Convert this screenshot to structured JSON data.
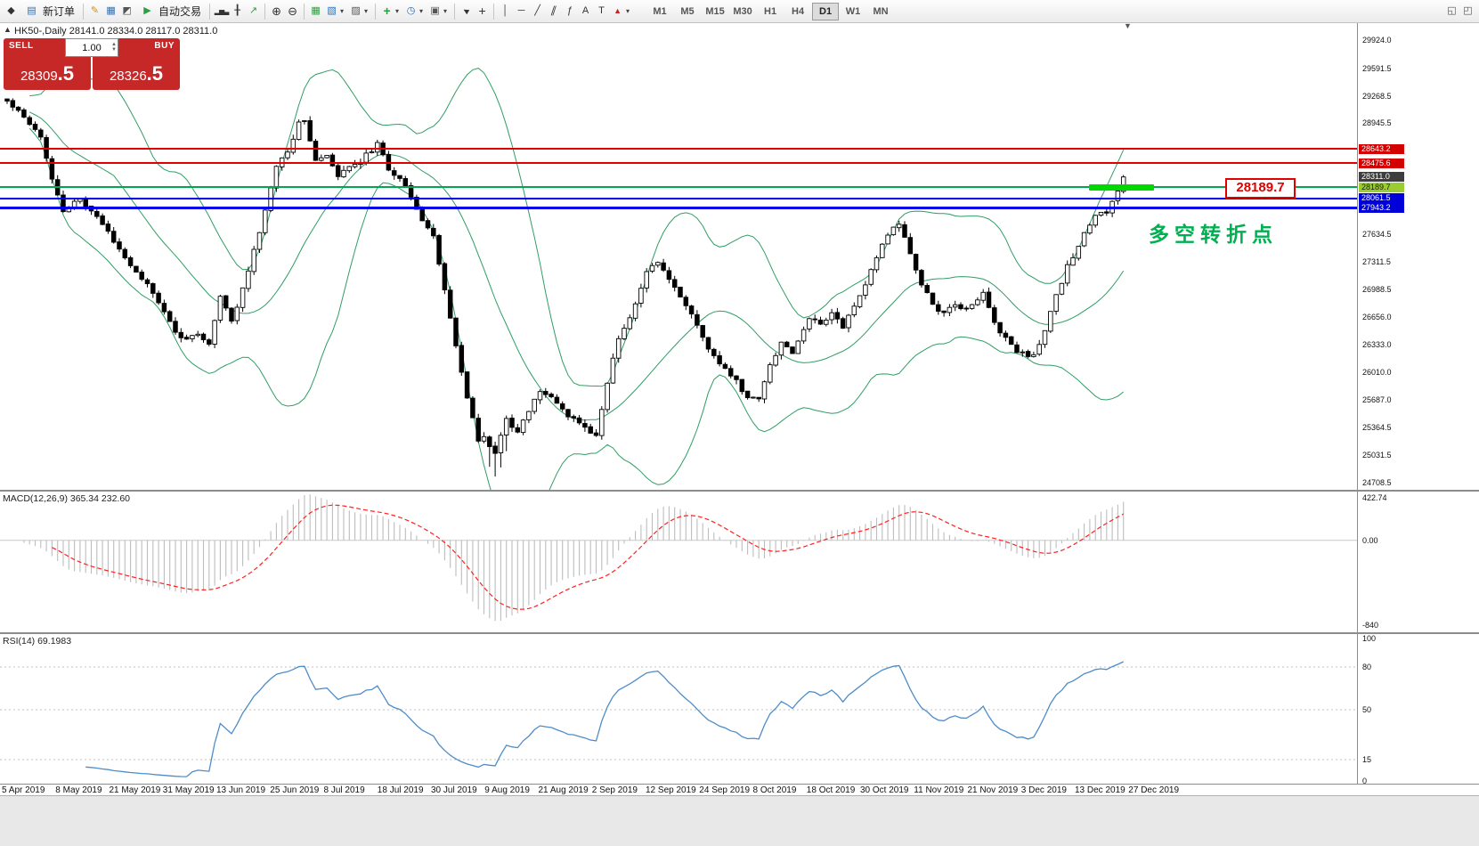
{
  "toolbar": {
    "new_order": "新订单",
    "auto_trading": "自动交易",
    "timeframes": [
      "M1",
      "M5",
      "M15",
      "M30",
      "H1",
      "H4",
      "D1",
      "W1",
      "MN"
    ],
    "active_timeframe": "D1"
  },
  "icons": {
    "app": "◆",
    "new_order": "▤",
    "terminal": "▦",
    "editor": "✎",
    "tester": "◩",
    "autotrade_play": "▶",
    "bars": "▂▅▃",
    "candles": "╂",
    "linechart": "↗",
    "zoom_in": "⊕",
    "zoom_out": "⊖",
    "tile": "▦",
    "new_chart": "▧",
    "profiles": "▨",
    "indicators": "+",
    "periods": "◷",
    "templates": "▣",
    "cursor": "▲",
    "crosshair": "+",
    "vline": "│",
    "hline": "─",
    "trend": "╱",
    "channel": "∥",
    "fibo": "ƒ",
    "text_tool": "A",
    "label_tool": "T",
    "shapes": "▲",
    "caret": "▾",
    "win1": "◱",
    "win2": "◰",
    "shift_marker": "▼",
    "collapse": "▲",
    "spin_up": "▲",
    "spin_down": "▼"
  },
  "main": {
    "ohlc_title": "HK50-,Daily  28141.0 28334.0 28117.0 28311.0"
  },
  "one_click": {
    "sell_label": "SELL",
    "buy_label": "BUY",
    "sell_price_main": "28309",
    "sell_price_big": ".5",
    "buy_price_main": "28326",
    "buy_price_big": ".5",
    "volume": "1.00",
    "button_color": "#c62828"
  },
  "price_axis": {
    "labels": [
      "29924.0",
      "29591.5",
      "29268.5",
      "28945.5",
      "27634.5",
      "27311.5",
      "26988.5",
      "26656.0",
      "26333.0",
      "26010.0",
      "25687.0",
      "25364.5",
      "25031.5",
      "24708.5"
    ],
    "tags": [
      {
        "text": "28643.2",
        "price": 28643.2,
        "bg": "#d40000",
        "fg": "#ffffff"
      },
      {
        "text": "28475.6",
        "price": 28475.6,
        "bg": "#d40000",
        "fg": "#ffffff"
      },
      {
        "text": "28311.0",
        "price": 28311.0,
        "bg": "#3d3d3d",
        "fg": "#ffffff"
      },
      {
        "text": "28189.7",
        "price": 28189.7,
        "bg": "#9acd32",
        "fg": "#1a1a1a"
      },
      {
        "text": "28061.5",
        "price": 28061.5,
        "bg": "#0000d8",
        "fg": "#ffffff"
      },
      {
        "text": "27943.2",
        "price": 27943.2,
        "bg": "#0000d8",
        "fg": "#ffffff"
      }
    ]
  },
  "hlines": [
    {
      "price": 28643.2,
      "color": "#e00000",
      "width": 2
    },
    {
      "price": 28475.6,
      "color": "#e00000",
      "width": 2
    },
    {
      "price": 28189.7,
      "color": "#00a651",
      "width": 2
    },
    {
      "price": 28061.5,
      "color": "#0000e8",
      "width": 2
    },
    {
      "price": 27943.2,
      "color": "#0000e8",
      "width": 3
    }
  ],
  "annotations": {
    "callout": "28189.7",
    "level": 28189.7,
    "note": "多空转折点",
    "note_color": "#00b050",
    "highlight_color": "#00d900"
  },
  "macd": {
    "label": "MACD(12,26,9) 365.34 232.60",
    "axis": [
      {
        "text": "422.74",
        "value": 422.74
      },
      {
        "text": "0.00",
        "value": 0
      },
      {
        "text": "-840",
        "value": -840
      }
    ]
  },
  "rsi": {
    "label": "RSI(14) 69.1983",
    "axis": [
      {
        "text": "100",
        "value": 100
      },
      {
        "text": "80",
        "value": 80
      },
      {
        "text": "50",
        "value": 50
      },
      {
        "text": "15",
        "value": 15
      },
      {
        "text": "0",
        "value": 0
      }
    ],
    "levels": [
      80,
      50,
      15
    ]
  },
  "dates": [
    "5 Apr 2019",
    "8 May 2019",
    "21 May 2019",
    "31 May 2019",
    "13 Jun 2019",
    "25 Jun 2019",
    "8 Jul 2019",
    "18 Jul 2019",
    "30 Jul 2019",
    "9 Aug 2019",
    "21 Aug 2019",
    "2 Sep 2019",
    "12 Sep 2019",
    "24 Sep 2019",
    "8 Oct 2019",
    "18 Oct 2019",
    "30 Oct 2019",
    "11 Nov 2019",
    "21 Nov 2019",
    "3 Dec 2019",
    "13 Dec 2019",
    "27 Dec 2019"
  ],
  "chart_data": {
    "type": "candlestick",
    "symbol": "HK50-",
    "timeframe": "Daily",
    "ohlc_latest": {
      "open": 28141.0,
      "high": 28334.0,
      "low": 28117.0,
      "close": 28311.0
    },
    "bid": "28309.5",
    "ask": "28326.5",
    "y_range": [
      24708.5,
      29924.0
    ],
    "num_candles": 200,
    "close_anchors": [
      [
        0,
        29200
      ],
      [
        2,
        29100
      ],
      [
        4,
        28950
      ],
      [
        6,
        28800
      ],
      [
        8,
        28300
      ],
      [
        10,
        27900
      ],
      [
        13,
        28050
      ],
      [
        16,
        27850
      ],
      [
        19,
        27550
      ],
      [
        23,
        27200
      ],
      [
        26,
        26950
      ],
      [
        28,
        26700
      ],
      [
        31,
        26400
      ],
      [
        34,
        26450
      ],
      [
        36,
        26350
      ],
      [
        38,
        26900
      ],
      [
        40,
        26600
      ],
      [
        43,
        27200
      ],
      [
        46,
        27900
      ],
      [
        48,
        28450
      ],
      [
        50,
        28600
      ],
      [
        52,
        28950
      ],
      [
        53,
        29000
      ],
      [
        55,
        28500
      ],
      [
        57,
        28550
      ],
      [
        59,
        28300
      ],
      [
        61,
        28450
      ],
      [
        63,
        28500
      ],
      [
        66,
        28700
      ],
      [
        68,
        28400
      ],
      [
        70,
        28300
      ],
      [
        72,
        28100
      ],
      [
        74,
        27800
      ],
      [
        76,
        27600
      ],
      [
        78,
        27000
      ],
      [
        80,
        26300
      ],
      [
        82,
        25700
      ],
      [
        84,
        25200
      ],
      [
        85,
        25250
      ],
      [
        87,
        25050
      ],
      [
        89,
        25450
      ],
      [
        91,
        25300
      ],
      [
        95,
        25800
      ],
      [
        98,
        25650
      ],
      [
        100,
        25500
      ],
      [
        103,
        25350
      ],
      [
        105,
        25250
      ],
      [
        107,
        25900
      ],
      [
        109,
        26400
      ],
      [
        112,
        26800
      ],
      [
        114,
        27200
      ],
      [
        116,
        27300
      ],
      [
        118,
        27100
      ],
      [
        120,
        26900
      ],
      [
        122,
        26700
      ],
      [
        124,
        26400
      ],
      [
        126,
        26200
      ],
      [
        128,
        26050
      ],
      [
        130,
        25900
      ],
      [
        132,
        25700
      ],
      [
        134,
        25700
      ],
      [
        136,
        26100
      ],
      [
        138,
        26350
      ],
      [
        140,
        26250
      ],
      [
        142,
        26500
      ],
      [
        143,
        26650
      ],
      [
        145,
        26600
      ],
      [
        147,
        26700
      ],
      [
        149,
        26550
      ],
      [
        151,
        26800
      ],
      [
        153,
        27050
      ],
      [
        155,
        27350
      ],
      [
        157,
        27650
      ],
      [
        159,
        27750
      ],
      [
        161,
        27400
      ],
      [
        163,
        27050
      ],
      [
        165,
        26800
      ],
      [
        167,
        26700
      ],
      [
        169,
        26800
      ],
      [
        171,
        26750
      ],
      [
        172,
        26800
      ],
      [
        174,
        26950
      ],
      [
        176,
        26600
      ],
      [
        178,
        26400
      ],
      [
        180,
        26250
      ],
      [
        183,
        26200
      ],
      [
        185,
        26500
      ],
      [
        187,
        26900
      ],
      [
        189,
        27250
      ],
      [
        191,
        27500
      ],
      [
        192,
        27650
      ],
      [
        194,
        27850
      ],
      [
        196,
        27900
      ],
      [
        197,
        28000
      ],
      [
        198,
        28145
      ],
      [
        199,
        28311
      ]
    ],
    "levels": {
      "resistance": [
        28643.2,
        28475.6
      ],
      "pivot": 28189.7,
      "support": [
        28061.5,
        27943.2
      ]
    },
    "indicators": {
      "bollinger_period": 20,
      "bollinger_dev": 2,
      "macd": [
        12,
        26,
        9
      ],
      "rsi_period": 14
    },
    "colors": {
      "candle": "#000000",
      "candle_up_fill": "#ffffff",
      "bands": "#2e9e63",
      "macd": "#bdbdbd",
      "signal": "#ff2020",
      "rsi": "#4e8cc9"
    }
  }
}
